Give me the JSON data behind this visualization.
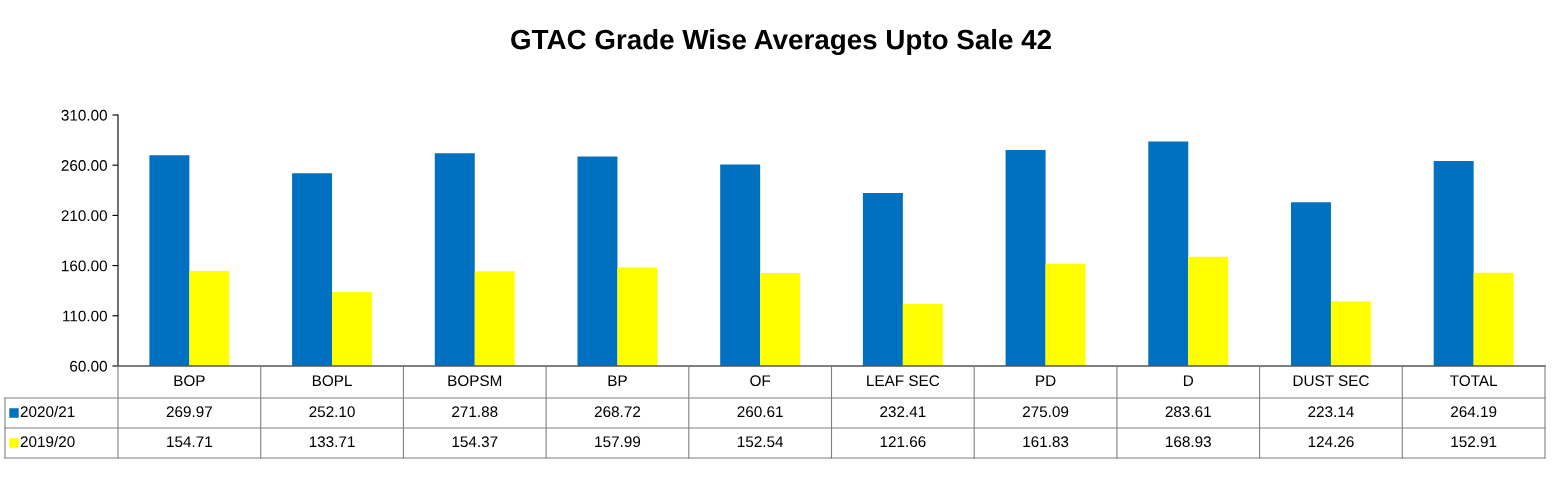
{
  "chart_data": {
    "type": "bar",
    "title": "GTAC Grade Wise Averages Upto Sale 42",
    "categories": [
      "BOP",
      "BOPL",
      "BOPSM",
      "BP",
      "OF",
      "LEAF SEC",
      "PD",
      "D",
      "DUST SEC",
      "TOTAL"
    ],
    "series": [
      {
        "name": "2020/21",
        "color": "#0070c0",
        "values": [
          269.97,
          252.1,
          271.88,
          268.72,
          260.61,
          232.41,
          275.09,
          283.61,
          223.14,
          264.19
        ],
        "value_labels": [
          "269.97",
          "252.10",
          "271.88",
          "268.72",
          "260.61",
          "232.41",
          "275.09",
          "283.61",
          "223.14",
          "264.19"
        ]
      },
      {
        "name": "2019/20",
        "color": "#ffff00",
        "values": [
          154.71,
          133.71,
          154.37,
          157.99,
          152.54,
          121.66,
          161.83,
          168.93,
          124.26,
          152.91
        ],
        "value_labels": [
          "154.71",
          "133.71",
          "154.37",
          "157.99",
          "152.54",
          "121.66",
          "161.83",
          "168.93",
          "124.26",
          "152.91"
        ]
      }
    ],
    "ylim": [
      60,
      310
    ],
    "yticks": [
      {
        "value": 60,
        "label": "60.00"
      },
      {
        "value": 110,
        "label": "110.00"
      },
      {
        "value": 160,
        "label": "160.00"
      },
      {
        "value": 210,
        "label": "210.00"
      },
      {
        "value": 260,
        "label": "260.00"
      },
      {
        "value": 310,
        "label": "310.00"
      }
    ],
    "grid": false,
    "legend": "bottom left"
  }
}
